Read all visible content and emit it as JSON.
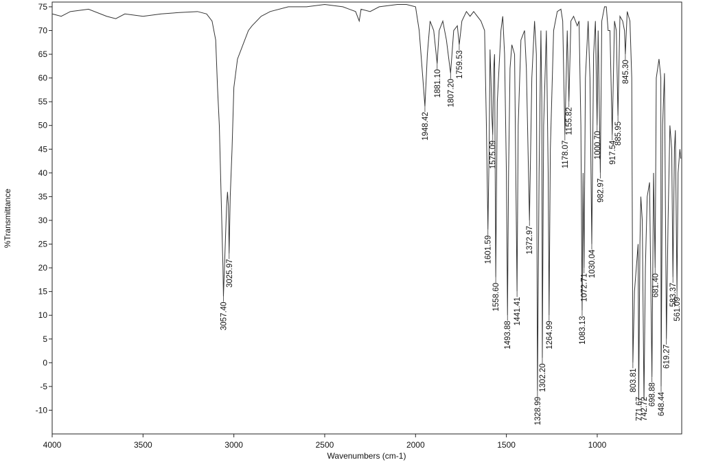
{
  "chart_data": {
    "type": "line",
    "xlabel": "Wavenumbers (cm-1)",
    "ylabel": "%Transmittance",
    "xlim": [
      4000,
      535
    ],
    "ylim": [
      -15,
      76
    ],
    "xticks": [
      4000,
      3500,
      3000,
      2500,
      2000,
      1500,
      1000
    ],
    "yticks": [
      -10,
      -5,
      0,
      5,
      10,
      15,
      20,
      25,
      30,
      35,
      40,
      45,
      50,
      55,
      60,
      65,
      70,
      75
    ],
    "x": [
      4000,
      3950,
      3900,
      3800,
      3700,
      3650,
      3600,
      3500,
      3400,
      3300,
      3200,
      3150,
      3120,
      3100,
      3090,
      3080,
      3070,
      3060,
      3057.4,
      3050,
      3040,
      3035,
      3030,
      3025.97,
      3020,
      3010,
      3000,
      2980,
      2950,
      2920,
      2900,
      2850,
      2800,
      2700,
      2600,
      2500,
      2400,
      2330,
      2310,
      2300,
      2250,
      2200,
      2100,
      2050,
      2000,
      1980,
      1960,
      1948.42,
      1935,
      1920,
      1900,
      1881.1,
      1870,
      1850,
      1830,
      1807.2,
      1790,
      1770,
      1759.53,
      1745,
      1720,
      1700,
      1680,
      1640,
      1620,
      1610,
      1601.59,
      1595,
      1590,
      1585,
      1580,
      1575.09,
      1570,
      1565,
      1558.6,
      1550,
      1530,
      1520,
      1510,
      1500,
      1493.88,
      1488,
      1480,
      1470,
      1455,
      1441.41,
      1435,
      1420,
      1400,
      1390,
      1372.97,
      1360,
      1345,
      1335,
      1328.99,
      1320,
      1310,
      1305,
      1302.2,
      1295,
      1280,
      1270,
      1264.99,
      1258,
      1240,
      1220,
      1200,
      1190,
      1178.07,
      1165,
      1155.82,
      1145,
      1130,
      1110,
      1100,
      1090,
      1083.13,
      1078,
      1072.71,
      1065,
      1050,
      1040,
      1030.04,
      1020,
      1010,
      1000.7,
      995,
      982.97,
      975,
      960,
      950,
      940,
      930,
      917.54,
      905,
      895,
      885.95,
      875,
      860,
      850,
      845.3,
      835,
      820,
      810,
      803.81,
      795,
      785,
      775,
      771.67,
      765,
      760,
      752,
      742.72,
      735,
      725,
      712,
      698.88,
      690,
      681.4,
      675,
      660,
      650,
      648.44,
      640,
      630,
      619.27,
      610,
      600,
      590,
      583.37,
      575,
      570,
      561.09,
      555,
      545,
      540
    ],
    "series": [
      {
        "color": "#333333",
        "values": [
          73.5,
          73,
          74,
          74.5,
          73,
          72.5,
          73.5,
          73,
          73.5,
          73.8,
          74,
          73.5,
          72,
          68,
          58,
          50,
          35,
          20,
          14,
          22,
          33,
          36,
          33,
          23,
          35,
          45,
          58,
          64,
          67,
          70,
          71,
          73,
          74,
          75,
          75,
          75.5,
          75,
          74,
          72,
          74.5,
          74,
          75,
          75.5,
          75.5,
          75,
          70,
          60,
          54,
          65,
          72,
          70,
          63,
          70,
          72,
          68,
          61,
          70,
          71,
          67,
          72,
          74,
          73,
          74,
          72,
          70,
          50,
          28,
          45,
          66,
          60,
          52,
          48,
          62,
          65,
          18,
          55,
          70,
          73,
          65,
          40,
          10,
          40,
          62,
          67,
          65,
          15,
          50,
          68,
          70,
          62,
          30,
          60,
          72,
          65,
          -6,
          40,
          70,
          55,
          1,
          50,
          70,
          40,
          10,
          45,
          70,
          74,
          74.5,
          72,
          48,
          70,
          55,
          72,
          73,
          71,
          72,
          50,
          11,
          40,
          20,
          60,
          72,
          60,
          25,
          65,
          72,
          50,
          70,
          40,
          72,
          75,
          75,
          70,
          70,
          48,
          72,
          70,
          52,
          73,
          72,
          70,
          65,
          74,
          72,
          60,
          0,
          15,
          20,
          25,
          -8,
          25,
          35,
          30,
          -8,
          20,
          35,
          38,
          -3,
          40,
          20,
          60,
          64,
          60,
          -5,
          50,
          61,
          5,
          30,
          50,
          45,
          18,
          45,
          49,
          15,
          40,
          45,
          43
        ]
      }
    ],
    "peaks": [
      {
        "x": 3057.4,
        "y": 14,
        "label": "3057.40"
      },
      {
        "x": 3025.97,
        "y": 23,
        "label": "3025.97"
      },
      {
        "x": 1948.42,
        "y": 54,
        "label": "1948.42"
      },
      {
        "x": 1881.1,
        "y": 63,
        "label": "1881.10"
      },
      {
        "x": 1807.2,
        "y": 61,
        "label": "1807.20"
      },
      {
        "x": 1759.53,
        "y": 67,
        "label": "1759.53"
      },
      {
        "x": 1601.59,
        "y": 28,
        "label": "1601.59"
      },
      {
        "x": 1575.09,
        "y": 48,
        "label": "1575.09"
      },
      {
        "x": 1558.6,
        "y": 18,
        "label": "1558.60"
      },
      {
        "x": 1493.88,
        "y": 10,
        "label": "1493.88"
      },
      {
        "x": 1441.41,
        "y": 15,
        "label": "1441.41"
      },
      {
        "x": 1372.97,
        "y": 30,
        "label": "1372.97"
      },
      {
        "x": 1328.99,
        "y": -6,
        "label": "1328.99"
      },
      {
        "x": 1302.2,
        "y": 1,
        "label": "1302.20"
      },
      {
        "x": 1264.99,
        "y": 10,
        "label": "1264.99"
      },
      {
        "x": 1178.07,
        "y": 48,
        "label": "1178.07"
      },
      {
        "x": 1155.82,
        "y": 55,
        "label": "1155.82"
      },
      {
        "x": 1083.13,
        "y": 11,
        "label": "1083.13"
      },
      {
        "x": 1072.71,
        "y": 20,
        "label": "1072.71"
      },
      {
        "x": 1030.04,
        "y": 25,
        "label": "1030.04"
      },
      {
        "x": 1000.7,
        "y": 50,
        "label": "1000.70"
      },
      {
        "x": 982.97,
        "y": 40,
        "label": "982.97"
      },
      {
        "x": 917.54,
        "y": 48,
        "label": "917.54"
      },
      {
        "x": 885.95,
        "y": 52,
        "label": "885.95"
      },
      {
        "x": 845.3,
        "y": 65,
        "label": "845.30"
      },
      {
        "x": 803.81,
        "y": 0,
        "label": "803.81"
      },
      {
        "x": 771.67,
        "y": -8,
        "label": "771.67"
      },
      {
        "x": 742.72,
        "y": -8,
        "label": "742.72"
      },
      {
        "x": 698.88,
        "y": -3,
        "label": "698.88"
      },
      {
        "x": 681.4,
        "y": 20,
        "label": "681.40"
      },
      {
        "x": 648.44,
        "y": -5,
        "label": "648.44"
      },
      {
        "x": 619.27,
        "y": 5,
        "label": "619.27"
      },
      {
        "x": 583.37,
        "y": 18,
        "label": "583.37"
      },
      {
        "x": 561.09,
        "y": 15,
        "label": "561.09"
      }
    ]
  }
}
